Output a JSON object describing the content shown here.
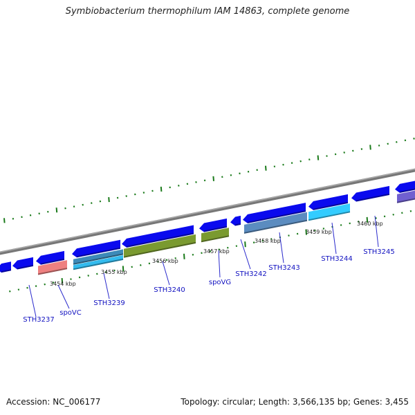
{
  "title": "Symbiobacterium thermophilum IAM 14863, complete genome",
  "accession": "Accession: NC_006177",
  "genome_info": "Topology: circular; Length: 3,566,135 bp; Genes: 3,455",
  "colors": {
    "backbone": "#888888",
    "forward_gene": "#0a0aee",
    "tick": "#1a7a1a",
    "label": "#1010c0"
  },
  "scale_labels": [
    "3454 kbp",
    "3455 kbp",
    "3456 kbp",
    "3457 kbp",
    "3458 kbp",
    "3459 kbp",
    "3460 kbp"
  ],
  "genes": [
    {
      "label": "STH3237"
    },
    {
      "label": "spoVC"
    },
    {
      "label": "STH3239"
    },
    {
      "label": "STH3240"
    },
    {
      "label": "spoVG"
    },
    {
      "label": "STH3242"
    },
    {
      "label": "STH3243"
    },
    {
      "label": "STH3244"
    },
    {
      "label": "STH3245"
    }
  ]
}
